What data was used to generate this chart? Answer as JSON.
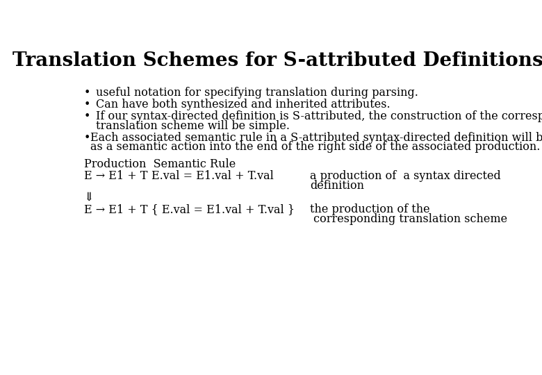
{
  "title": "Translation Schemes for S-attributed Definitions",
  "background_color": "#ffffff",
  "text_color": "#000000",
  "title_fontsize": 20,
  "body_fontsize": 11.5,
  "bullet1": "useful notation for specifying translation during parsing.",
  "bullet2": "Can have both synthesized and inherited attributes.",
  "bullet3a": "If our syntax-directed definition is S-attributed, the construction of the corresponding",
  "bullet3b": "translation scheme will be simple.",
  "bullet4a": "Each associated semantic rule in a S-attributed syntax-directed definition will be inserted",
  "bullet4b": "as a semantic action into the end of the right side of the associated production.",
  "prod_header": "Production  Semantic Rule",
  "prod_line1_left": "E → E1 + T",
  "prod_line1_mid": "E.val = E1.val + T.val",
  "prod_line1_right1": "a production of  a syntax directed",
  "prod_line1_right2": "definition",
  "arrow": "⇓",
  "prod_line2_left": "E → E1 + T { E.val = E1.val + T.val }",
  "prod_line2_right1": "the production of the",
  "prod_line2_right2": " corresponding translation scheme"
}
